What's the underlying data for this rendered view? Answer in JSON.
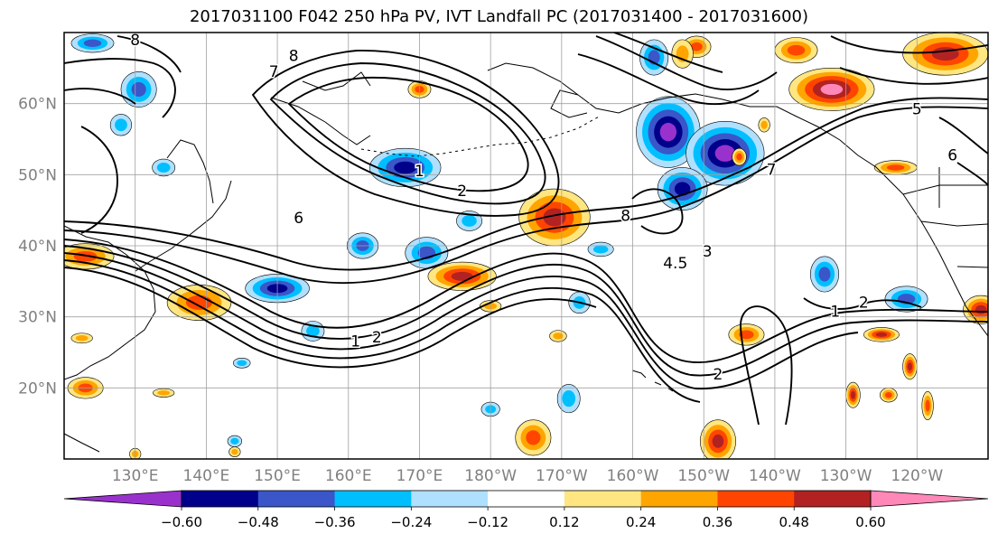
{
  "title": "2017031100 F042 250 hPa PV, IVT Landfall PC (2017031400 - 2017031600)",
  "map": {
    "extent": {
      "lon_min": 120,
      "lon_max": 250,
      "lat_min": 10,
      "lat_max": 70
    },
    "gridlines": true,
    "lat_ticks": [
      {
        "value": 20,
        "label": "20°N"
      },
      {
        "value": 30,
        "label": "30°N"
      },
      {
        "value": 40,
        "label": "40°N"
      },
      {
        "value": 50,
        "label": "50°N"
      },
      {
        "value": 60,
        "label": "60°N"
      }
    ],
    "lon_ticks": [
      {
        "value": 130,
        "label": "130°E"
      },
      {
        "value": 140,
        "label": "140°E"
      },
      {
        "value": 150,
        "label": "150°E"
      },
      {
        "value": 160,
        "label": "160°E"
      },
      {
        "value": 170,
        "label": "170°E"
      },
      {
        "value": 180,
        "label": "180°W"
      },
      {
        "value": 190,
        "label": "170°W"
      },
      {
        "value": 200,
        "label": "160°W"
      },
      {
        "value": 210,
        "label": "150°W"
      },
      {
        "value": 220,
        "label": "140°W"
      },
      {
        "value": 230,
        "label": "130°W"
      },
      {
        "value": 240,
        "label": "120°W"
      }
    ],
    "contour_labels": [
      {
        "text": "8",
        "lon": 130.0,
        "lat": 68.2
      },
      {
        "text": "7",
        "lon": 149.5,
        "lat": 63.8
      },
      {
        "text": "8",
        "lon": 152.3,
        "lat": 66.0
      },
      {
        "text": "1",
        "lon": 170.0,
        "lat": 49.8
      },
      {
        "text": "2",
        "lon": 176.0,
        "lat": 47.0
      },
      {
        "text": "6",
        "lon": 153.0,
        "lat": 43.2
      },
      {
        "text": "2",
        "lon": 164.0,
        "lat": 26.4
      },
      {
        "text": "1",
        "lon": 161.0,
        "lat": 25.8
      },
      {
        "text": "4.5",
        "lon": 206.0,
        "lat": 36.8
      },
      {
        "text": "3",
        "lon": 210.5,
        "lat": 38.5
      },
      {
        "text": "2",
        "lon": 212.0,
        "lat": 21.2
      },
      {
        "text": "2",
        "lon": 232.5,
        "lat": 31.3
      },
      {
        "text": "1",
        "lon": 228.5,
        "lat": 30.0
      },
      {
        "text": "7",
        "lon": 219.5,
        "lat": 50.0
      },
      {
        "text": "5",
        "lon": 240.0,
        "lat": 58.5
      },
      {
        "text": "6",
        "lon": 245.0,
        "lat": 52.0
      },
      {
        "text": "8",
        "lon": 199.0,
        "lat": 43.5
      }
    ]
  },
  "chart_data": {
    "type": "heatmap",
    "variable": "IVT Landfall PC (shaded) with 250 hPa PV contours",
    "colorbar": {
      "extend": "both",
      "ticks": [
        "−0.60",
        "−0.48",
        "−0.36",
        "−0.24",
        "−0.12",
        "0.12",
        "0.24",
        "0.36",
        "0.48",
        "0.60"
      ],
      "boundaries": [
        -0.6,
        -0.48,
        -0.36,
        -0.24,
        -0.12,
        0.12,
        0.24,
        0.36,
        0.48,
        0.6
      ],
      "colors": [
        "#9932cc",
        "#00008b",
        "#3a56c9",
        "#00bfff",
        "#b0e0ff",
        "#ffffff",
        "#ffe680",
        "#ffa500",
        "#ff4500",
        "#b22222",
        "#ff88b8"
      ]
    },
    "features": [
      {
        "sign": "negative",
        "intensity": -0.48,
        "lon": 168,
        "lat": 51,
        "rx": 5,
        "ry": 2.7
      },
      {
        "sign": "negative",
        "intensity": -0.36,
        "lon": 130.5,
        "lat": 62,
        "rx": 2.5,
        "ry": 2.5
      },
      {
        "sign": "negative",
        "intensity": -0.36,
        "lon": 124,
        "lat": 68.5,
        "rx": 3,
        "ry": 1.3
      },
      {
        "sign": "negative",
        "intensity": -0.24,
        "lon": 128,
        "lat": 57,
        "rx": 1.5,
        "ry": 1.5
      },
      {
        "sign": "negative",
        "intensity": -0.24,
        "lon": 134,
        "lat": 51,
        "rx": 1.6,
        "ry": 1.2
      },
      {
        "sign": "negative",
        "intensity": -0.36,
        "lon": 162,
        "lat": 40,
        "rx": 2.2,
        "ry": 1.8
      },
      {
        "sign": "negative",
        "intensity": -0.36,
        "lon": 171,
        "lat": 39,
        "rx": 3,
        "ry": 2.2
      },
      {
        "sign": "negative",
        "intensity": -0.24,
        "lon": 177,
        "lat": 43.5,
        "rx": 1.8,
        "ry": 1.4
      },
      {
        "sign": "negative",
        "intensity": -0.48,
        "lon": 150,
        "lat": 34,
        "rx": 4.5,
        "ry": 2
      },
      {
        "sign": "negative",
        "intensity": -0.24,
        "lon": 155,
        "lat": 28,
        "rx": 1.6,
        "ry": 1.4
      },
      {
        "sign": "negative",
        "intensity": -0.6,
        "lon": 205,
        "lat": 56,
        "rx": 4.5,
        "ry": 5
      },
      {
        "sign": "negative",
        "intensity": -0.6,
        "lon": 213,
        "lat": 53,
        "rx": 5.5,
        "ry": 4.5
      },
      {
        "sign": "negative",
        "intensity": -0.48,
        "lon": 207,
        "lat": 48,
        "rx": 3.5,
        "ry": 3
      },
      {
        "sign": "negative",
        "intensity": -0.36,
        "lon": 203,
        "lat": 66.5,
        "rx": 2,
        "ry": 2.5
      },
      {
        "sign": "negative",
        "intensity": -0.36,
        "lon": 227,
        "lat": 36,
        "rx": 2,
        "ry": 2.5
      },
      {
        "sign": "negative",
        "intensity": -0.36,
        "lon": 238.5,
        "lat": 32.5,
        "rx": 3,
        "ry": 1.8
      },
      {
        "sign": "negative",
        "intensity": -0.24,
        "lon": 191,
        "lat": 18.5,
        "rx": 1.6,
        "ry": 2
      },
      {
        "sign": "negative",
        "intensity": -0.24,
        "lon": 180,
        "lat": 17,
        "rx": 1.3,
        "ry": 1
      },
      {
        "sign": "negative",
        "intensity": -0.24,
        "lon": 192.5,
        "lat": 32,
        "rx": 1.5,
        "ry": 1.5
      },
      {
        "sign": "negative",
        "intensity": -0.24,
        "lon": 195.5,
        "lat": 39.5,
        "rx": 1.8,
        "ry": 1
      },
      {
        "sign": "negative",
        "intensity": -0.24,
        "lon": 145,
        "lat": 23.5,
        "rx": 1.2,
        "ry": 0.7
      },
      {
        "sign": "negative",
        "intensity": -0.24,
        "lon": 144,
        "lat": 12.5,
        "rx": 1,
        "ry": 0.8
      },
      {
        "sign": "positive",
        "intensity": 0.48,
        "lon": 189,
        "lat": 44,
        "rx": 5,
        "ry": 4
      },
      {
        "sign": "positive",
        "intensity": 0.48,
        "lon": 176,
        "lat": 35.7,
        "rx": 4.8,
        "ry": 2
      },
      {
        "sign": "positive",
        "intensity": 0.6,
        "lon": 228,
        "lat": 62,
        "rx": 6,
        "ry": 3
      },
      {
        "sign": "positive",
        "intensity": 0.48,
        "lon": 244,
        "lat": 67,
        "rx": 6,
        "ry": 3
      },
      {
        "sign": "positive",
        "intensity": 0.36,
        "lon": 223,
        "lat": 67.5,
        "rx": 3,
        "ry": 1.8
      },
      {
        "sign": "positive",
        "intensity": 0.36,
        "lon": 209,
        "lat": 68,
        "rx": 2,
        "ry": 1.5
      },
      {
        "sign": "positive",
        "intensity": 0.36,
        "lon": 139,
        "lat": 32,
        "rx": 4.5,
        "ry": 2.5
      },
      {
        "sign": "positive",
        "intensity": 0.36,
        "lon": 123,
        "lat": 38.5,
        "rx": 4,
        "ry": 1.8
      },
      {
        "sign": "positive",
        "intensity": 0.36,
        "lon": 123,
        "lat": 20,
        "rx": 2.5,
        "ry": 1.5
      },
      {
        "sign": "positive",
        "intensity": 0.24,
        "lon": 134,
        "lat": 19.3,
        "rx": 1.5,
        "ry": 0.6
      },
      {
        "sign": "positive",
        "intensity": 0.24,
        "lon": 122.5,
        "lat": 27,
        "rx": 1.5,
        "ry": 0.7
      },
      {
        "sign": "positive",
        "intensity": 0.36,
        "lon": 186,
        "lat": 13,
        "rx": 2.5,
        "ry": 2.5
      },
      {
        "sign": "positive",
        "intensity": 0.48,
        "lon": 212,
        "lat": 12.5,
        "rx": 2.5,
        "ry": 3
      },
      {
        "sign": "positive",
        "intensity": 0.36,
        "lon": 216,
        "lat": 27.5,
        "rx": 2.5,
        "ry": 1.5
      },
      {
        "sign": "positive",
        "intensity": 0.24,
        "lon": 189.5,
        "lat": 27.3,
        "rx": 1.2,
        "ry": 0.8
      },
      {
        "sign": "positive",
        "intensity": 0.48,
        "lon": 235,
        "lat": 27.5,
        "rx": 2.5,
        "ry": 1
      },
      {
        "sign": "positive",
        "intensity": 0.48,
        "lon": 239,
        "lat": 23,
        "rx": 1,
        "ry": 1.8
      },
      {
        "sign": "positive",
        "intensity": 0.48,
        "lon": 231,
        "lat": 19,
        "rx": 1,
        "ry": 1.8
      },
      {
        "sign": "positive",
        "intensity": 0.36,
        "lon": 236,
        "lat": 19,
        "rx": 1.2,
        "ry": 1
      },
      {
        "sign": "positive",
        "intensity": 0.36,
        "lon": 241.5,
        "lat": 17.5,
        "rx": 0.8,
        "ry": 2
      },
      {
        "sign": "positive",
        "intensity": 0.48,
        "lon": 249,
        "lat": 31,
        "rx": 2.5,
        "ry": 2
      },
      {
        "sign": "positive",
        "intensity": 0.36,
        "lon": 170,
        "lat": 62,
        "rx": 1.6,
        "ry": 1.2
      },
      {
        "sign": "positive",
        "intensity": 0.36,
        "lon": 215,
        "lat": 52.5,
        "rx": 1,
        "ry": 1.2
      },
      {
        "sign": "positive",
        "intensity": 0.24,
        "lon": 218.5,
        "lat": 57,
        "rx": 0.8,
        "ry": 1
      },
      {
        "sign": "positive",
        "intensity": 0.24,
        "lon": 207,
        "lat": 67,
        "rx": 1.5,
        "ry": 2
      },
      {
        "sign": "positive",
        "intensity": 0.24,
        "lon": 180,
        "lat": 31.5,
        "rx": 1.5,
        "ry": 0.8
      },
      {
        "sign": "positive",
        "intensity": 0.24,
        "lon": 144,
        "lat": 11,
        "rx": 0.8,
        "ry": 0.7
      },
      {
        "sign": "positive",
        "intensity": 0.24,
        "lon": 130,
        "lat": 10.7,
        "rx": 0.8,
        "ry": 0.8
      },
      {
        "sign": "positive",
        "intensity": 0.36,
        "lon": 237,
        "lat": 51,
        "rx": 3,
        "ry": 1
      }
    ]
  }
}
